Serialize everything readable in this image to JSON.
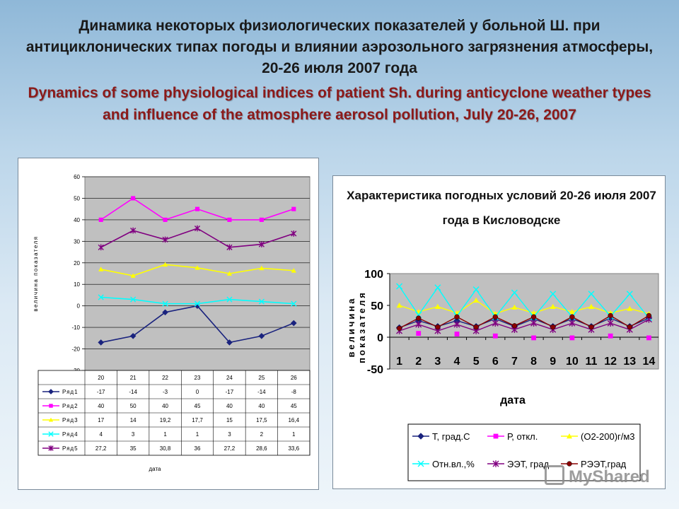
{
  "title_ru": "Динамика некоторых физиологических показателей у больной Ш. при антициклонических типах погоды и влиянии аэрозольного загрязнения атмосферы, 20-26 июля 2007 года",
  "title_en": "Dynamics of some physiological indices of patient Sh. during anticyclone weather types and influence of the atmosphere aerosol pollution, July 20-26, 2007",
  "watermark": "MyShared",
  "chart_data": [
    {
      "type": "line",
      "title": "",
      "xlabel": "дата",
      "ylabel": "величина показателя",
      "ylim": [
        -30,
        60
      ],
      "yticks": [
        -30,
        -20,
        -10,
        0,
        10,
        20,
        30,
        40,
        50,
        60
      ],
      "categories": [
        "20",
        "21",
        "22",
        "23",
        "24",
        "25",
        "26"
      ],
      "grid": true,
      "legend": "table-below",
      "series": [
        {
          "name": "Ряд1",
          "color": "#1a237e",
          "marker": "diamond",
          "values": [
            -17,
            -14,
            -3,
            0,
            -17,
            -14,
            -8
          ],
          "labels": [
            "-17",
            "-14",
            "-3",
            "0",
            "-17",
            "-14",
            "-8"
          ]
        },
        {
          "name": "Ряд2",
          "color": "#ff00ff",
          "marker": "square",
          "values": [
            40,
            50,
            40,
            45,
            40,
            40,
            45
          ],
          "labels": [
            "40",
            "50",
            "40",
            "45",
            "40",
            "40",
            "45"
          ]
        },
        {
          "name": "Ряд3",
          "color": "#ffff00",
          "marker": "triangle",
          "values": [
            17,
            14,
            19.2,
            17.7,
            15,
            17.5,
            16.4
          ],
          "labels": [
            "17",
            "14",
            "19,2",
            "17,7",
            "15",
            "17,5",
            "16,4"
          ]
        },
        {
          "name": "Ряд4",
          "color": "#00ffff",
          "marker": "x",
          "values": [
            4,
            3,
            1,
            1,
            3,
            2,
            1
          ],
          "labels": [
            "4",
            "3",
            "1",
            "1",
            "3",
            "2",
            "1"
          ]
        },
        {
          "name": "Ряд5",
          "color": "#800080",
          "marker": "star",
          "values": [
            27.2,
            35,
            30.8,
            36,
            27.2,
            28.6,
            33.6
          ],
          "labels": [
            "27,2",
            "35",
            "30,8",
            "36",
            "27,2",
            "28,6",
            "33,6"
          ]
        }
      ]
    },
    {
      "type": "line",
      "title": "Характеристика погодных условий 20-26 июля 2007 года в Кисловодске",
      "xlabel": "дата",
      "ylabel": "величина показателя",
      "ylim": [
        -50,
        100
      ],
      "yticks": [
        -50,
        0,
        50,
        100
      ],
      "categories": [
        "1",
        "2",
        "3",
        "4",
        "5",
        "6",
        "7",
        "8",
        "9",
        "10",
        "11",
        "12",
        "13",
        "14"
      ],
      "grid": false,
      "legend": "bottom",
      "series": [
        {
          "name": "Т, град.С",
          "color": "#1a237e",
          "marker": "diamond",
          "values": [
            15,
            26,
            17,
            26,
            17,
            29,
            17,
            29,
            17,
            29,
            17,
            30,
            17,
            30
          ]
        },
        {
          "name": "Р, откл.",
          "color": "#ff00ff",
          "marker": "square",
          "values": [
            null,
            6,
            null,
            5,
            null,
            2,
            null,
            -1,
            null,
            -1,
            null,
            2,
            null,
            -1
          ]
        },
        {
          "name": "(О2-200)г/м3",
          "color": "#ffff00",
          "marker": "triangle",
          "values": [
            50,
            40,
            48,
            38,
            58,
            37,
            47,
            38,
            48,
            40,
            48,
            38,
            45,
            37
          ]
        },
        {
          "name": "Отн.вл.,%",
          "color": "#00ffff",
          "marker": "x",
          "values": [
            80,
            35,
            78,
            33,
            75,
            32,
            70,
            32,
            68,
            32,
            68,
            33,
            68,
            30
          ]
        },
        {
          "name": "ЭЭТ, град",
          "color": "#800080",
          "marker": "star",
          "values": [
            10,
            20,
            10,
            20,
            10,
            22,
            12,
            22,
            12,
            22,
            12,
            22,
            12,
            28
          ]
        },
        {
          "name": "РЭЭТ,град",
          "color": "#8b0000",
          "marker": "circle",
          "values": [
            14,
            30,
            16,
            32,
            16,
            32,
            18,
            32,
            16,
            32,
            16,
            34,
            16,
            34
          ]
        }
      ]
    }
  ]
}
